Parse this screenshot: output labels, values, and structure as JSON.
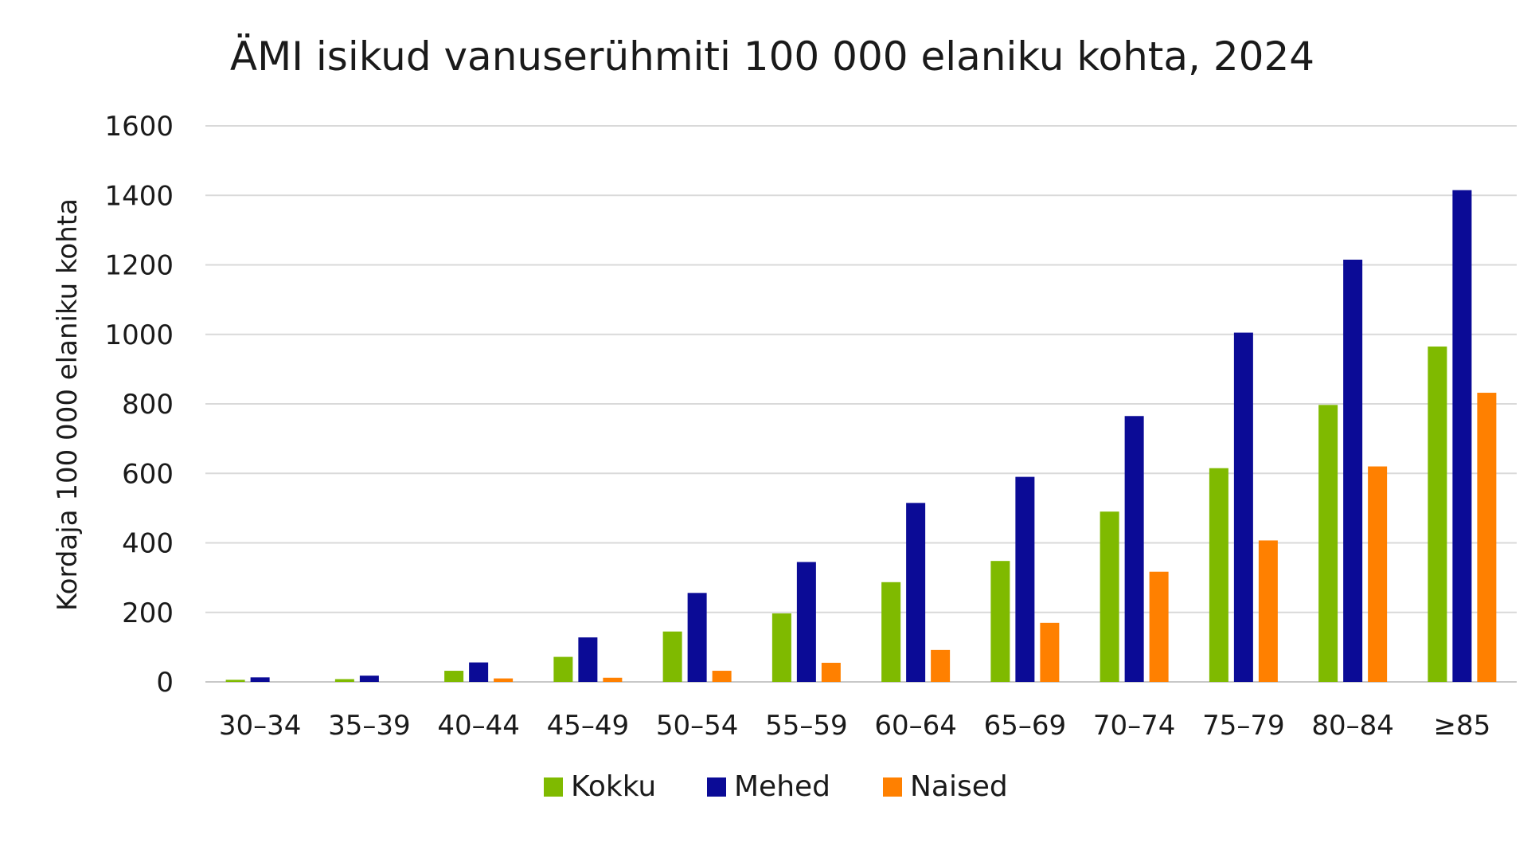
{
  "chart_data": {
    "type": "bar",
    "title": "ÄMI isikud vanuserühmiti 100 000 elaniku kohta, 2024",
    "xlabel": "",
    "ylabel": "Kordaja 100 000 elaniku kohta",
    "ylim": [
      0,
      1600
    ],
    "yticks": [
      0,
      200,
      400,
      600,
      800,
      1000,
      1200,
      1400,
      1600
    ],
    "grid": true,
    "legend_position": "bottom",
    "categories": [
      "30–34",
      "35–39",
      "40–44",
      "45–49",
      "50–54",
      "55–59",
      "60–64",
      "65–69",
      "70–74",
      "75–79",
      "80–84",
      "≥85"
    ],
    "series": [
      {
        "name": "Kokku",
        "color": "#7fba00",
        "values": [
          6,
          8,
          32,
          72,
          145,
          197,
          287,
          348,
          490,
          615,
          797,
          965
        ]
      },
      {
        "name": "Mehed",
        "color": "#0b0b96",
        "values": [
          13,
          18,
          56,
          128,
          256,
          345,
          515,
          590,
          765,
          1005,
          1215,
          1415
        ]
      },
      {
        "name": "Naised",
        "color": "#ff8000",
        "values": [
          0,
          0,
          10,
          12,
          32,
          55,
          92,
          170,
          317,
          407,
          620,
          832
        ]
      }
    ]
  }
}
